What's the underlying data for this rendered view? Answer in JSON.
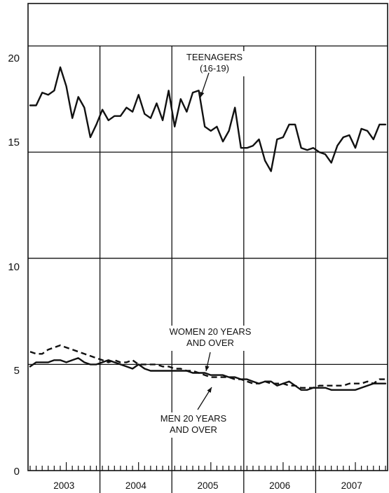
{
  "chart_data": {
    "type": "line",
    "title": "",
    "xlabel": "",
    "ylabel": "",
    "ylim": [
      0,
      22
    ],
    "yticks": [
      0,
      5,
      10,
      15,
      20
    ],
    "years": [
      "2003",
      "2004",
      "2005",
      "2006",
      "2007"
    ],
    "x_start": "2003-01",
    "points_per_series": 60,
    "series": [
      {
        "name": "TEENAGERS (16-19)",
        "label_lines": [
          "TEENAGERS",
          "(16-19)"
        ],
        "style": "solid",
        "values": [
          17.2,
          17.2,
          17.8,
          17.7,
          17.9,
          19.0,
          18.1,
          16.6,
          17.6,
          17.1,
          15.7,
          16.3,
          17.0,
          16.5,
          16.7,
          16.7,
          17.1,
          16.9,
          17.7,
          16.8,
          16.6,
          17.3,
          16.5,
          17.9,
          16.2,
          17.5,
          16.9,
          17.8,
          17.9,
          16.2,
          16.0,
          16.2,
          15.5,
          16.0,
          17.1,
          15.2,
          15.2,
          15.3,
          15.6,
          14.6,
          14.1,
          15.6,
          15.7,
          16.3,
          16.3,
          15.2,
          15.1,
          15.2,
          15.0,
          14.9,
          14.5,
          15.3,
          15.7,
          15.8,
          15.2,
          16.1,
          16.0,
          15.6,
          16.3,
          16.3
        ]
      },
      {
        "name": "WOMEN 20 YEARS AND OVER",
        "label_lines": [
          "WOMEN 20 YEARS",
          "AND OVER"
        ],
        "style": "solid",
        "values": [
          4.9,
          5.1,
          5.1,
          5.1,
          5.2,
          5.2,
          5.1,
          5.2,
          5.3,
          5.1,
          5.0,
          5.0,
          5.1,
          5.2,
          5.1,
          5.0,
          4.9,
          4.8,
          5.0,
          4.8,
          4.7,
          4.7,
          4.7,
          4.7,
          4.7,
          4.7,
          4.7,
          4.6,
          4.6,
          4.6,
          4.5,
          4.5,
          4.5,
          4.4,
          4.4,
          4.3,
          4.3,
          4.2,
          4.1,
          4.2,
          4.2,
          4.0,
          4.1,
          4.2,
          4.0,
          3.8,
          3.8,
          3.9,
          3.9,
          3.9,
          3.8,
          3.8,
          3.8,
          3.8,
          3.8,
          3.9,
          4.0,
          4.1,
          4.1,
          4.1
        ]
      },
      {
        "name": "MEN 20 YEARS AND OVER",
        "label_lines": [
          "MEN 20 YEARS",
          "AND OVER"
        ],
        "style": "dashed",
        "values": [
          5.6,
          5.5,
          5.5,
          5.7,
          5.8,
          5.9,
          5.8,
          5.7,
          5.6,
          5.5,
          5.4,
          5.3,
          5.2,
          5.1,
          5.2,
          5.1,
          5.1,
          5.2,
          5.0,
          5.0,
          5.0,
          5.0,
          4.9,
          4.9,
          4.8,
          4.8,
          4.7,
          4.7,
          4.6,
          4.5,
          4.4,
          4.4,
          4.4,
          4.4,
          4.3,
          4.3,
          4.2,
          4.1,
          4.1,
          4.2,
          4.1,
          4.1,
          4.1,
          4.0,
          4.0,
          3.9,
          3.9,
          3.9,
          4.0,
          4.0,
          4.0,
          4.0,
          4.0,
          4.1,
          4.1,
          4.1,
          4.2,
          4.1,
          4.3,
          4.3
        ]
      }
    ],
    "grid": true,
    "legend": "inline annotations"
  }
}
